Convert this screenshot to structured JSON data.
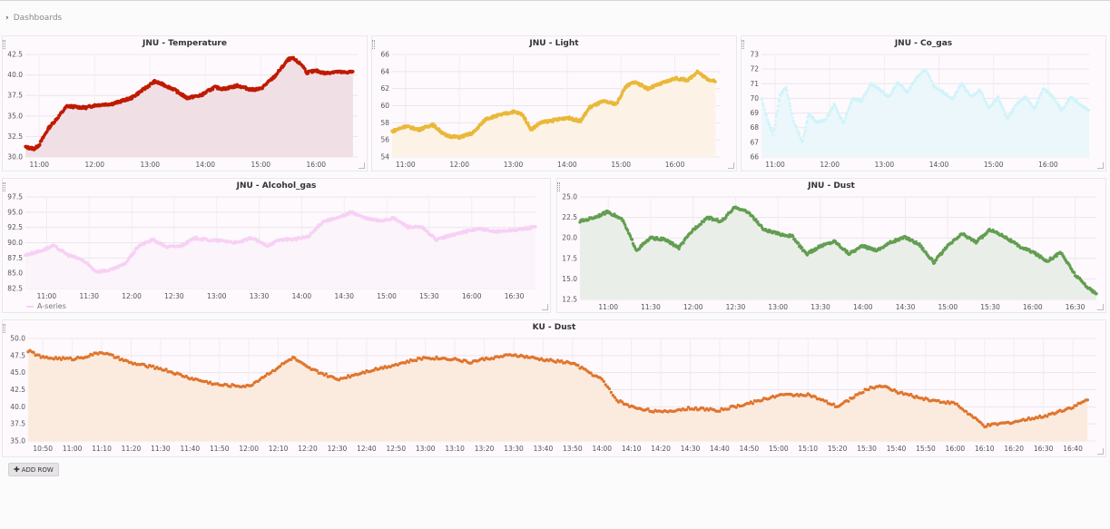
{
  "breadcrumb": {
    "icon": "chevron-right-icon",
    "label": "Dashboards"
  },
  "add_row": {
    "icon": "plus-icon",
    "label": "ADD ROW"
  },
  "chart_data": [
    {
      "id": "jnu-temperature",
      "type": "area",
      "title": "JNU - Temperature",
      "color": "#bf1b00",
      "fill": "#f1dfe6",
      "points": "large",
      "ylim": [
        30.0,
        42.5
      ],
      "yticks": [
        "30.0",
        "32.5",
        "35.0",
        "37.5",
        "40.0",
        "42.5"
      ],
      "xlim": [
        "10:45",
        "16:45"
      ],
      "xticks": [
        "11:00",
        "12:00",
        "13:00",
        "14:00",
        "15:00",
        "16:00"
      ],
      "series": [
        {
          "x": [
            "10:45",
            "10:55",
            "11:00",
            "11:10",
            "11:20",
            "11:30",
            "11:50",
            "12:00",
            "12:20",
            "12:40",
            "12:50",
            "13:05",
            "13:15",
            "13:25",
            "13:40",
            "13:55",
            "14:10",
            "14:20",
            "14:35",
            "14:50",
            "15:00",
            "15:15",
            "15:30",
            "15:35",
            "15:45",
            "15:50",
            "16:00",
            "16:10",
            "16:20",
            "16:30",
            "16:40"
          ],
          "y": [
            31.2,
            31.0,
            31.5,
            33.5,
            34.8,
            36.2,
            36.0,
            36.3,
            36.5,
            37.2,
            38.0,
            39.2,
            38.8,
            38.3,
            37.2,
            37.5,
            38.5,
            38.3,
            38.7,
            38.2,
            38.3,
            39.8,
            41.9,
            42.0,
            41.2,
            40.3,
            40.5,
            40.2,
            40.4,
            40.3,
            40.4
          ]
        }
      ]
    },
    {
      "id": "jnu-light",
      "type": "area",
      "title": "JNU - Light",
      "color": "#eab839",
      "fill": "#fcf3e6",
      "points": "large",
      "ylim": [
        54,
        66
      ],
      "yticks": [
        "54",
        "56",
        "58",
        "60",
        "62",
        "64",
        "66"
      ],
      "xlim": [
        "10:45",
        "16:50"
      ],
      "xticks": [
        "11:00",
        "12:00",
        "13:00",
        "14:00",
        "15:00",
        "16:00"
      ],
      "series": [
        {
          "x": [
            "10:45",
            "11:00",
            "11:15",
            "11:30",
            "11:45",
            "12:00",
            "12:15",
            "12:30",
            "12:45",
            "13:00",
            "13:10",
            "13:20",
            "13:30",
            "13:45",
            "14:00",
            "14:15",
            "14:25",
            "14:40",
            "14:55",
            "15:05",
            "15:15",
            "15:30",
            "15:45",
            "16:00",
            "16:15",
            "16:25",
            "16:35",
            "16:45"
          ],
          "y": [
            57.0,
            57.6,
            57.2,
            57.8,
            56.5,
            56.3,
            56.8,
            58.5,
            58.9,
            59.3,
            59.0,
            57.2,
            58.0,
            58.3,
            58.6,
            58.2,
            59.8,
            60.5,
            60.2,
            62.2,
            62.8,
            62.0,
            62.6,
            63.2,
            63.0,
            64.0,
            63.2,
            62.8
          ]
        }
      ]
    },
    {
      "id": "jnu-co-gas",
      "type": "scatter",
      "title": "JNU - Co_gas",
      "color": "#cff4fa",
      "fill": "#ebf7fb",
      "points": "small",
      "ylim": [
        66,
        73
      ],
      "yticks": [
        "66",
        "67",
        "68",
        "69",
        "70",
        "71",
        "72",
        "73"
      ],
      "xlim": [
        "10:45",
        "16:45"
      ],
      "xticks": [
        "11:00",
        "12:00",
        "13:00",
        "14:00",
        "15:00",
        "16:00"
      ],
      "series": [
        {
          "x": [
            "10:45",
            "10:52",
            "10:58",
            "11:05",
            "11:12",
            "11:20",
            "11:30",
            "11:37",
            "11:45",
            "11:55",
            "12:05",
            "12:15",
            "12:25",
            "12:35",
            "12:45",
            "12:55",
            "13:05",
            "13:15",
            "13:25",
            "13:35",
            "13:45",
            "13:55",
            "14:05",
            "14:15",
            "14:25",
            "14:35",
            "14:45",
            "14:55",
            "15:05",
            "15:15",
            "15:25",
            "15:35",
            "15:45",
            "15:55",
            "16:05",
            "16:15",
            "16:25",
            "16:35",
            "16:45"
          ],
          "y": [
            70.0,
            68.5,
            67.5,
            70.2,
            70.8,
            68.5,
            67.0,
            69.0,
            68.4,
            68.5,
            69.6,
            68.3,
            70.0,
            69.8,
            71.0,
            70.6,
            70.1,
            71.1,
            70.4,
            71.4,
            72.0,
            70.8,
            70.4,
            70.0,
            71.0,
            70.1,
            70.6,
            69.3,
            70.1,
            68.6,
            69.6,
            70.1,
            69.3,
            70.7,
            70.1,
            69.2,
            70.1,
            69.6,
            69.2
          ]
        }
      ]
    },
    {
      "id": "jnu-alcohol-gas",
      "type": "area",
      "title": "JNU - Alcohol_gas",
      "color": "#f7d1f5",
      "fill": "#fbf4fb",
      "points": "large",
      "legend": "A-series",
      "ylim": [
        82.5,
        97.5
      ],
      "yticks": [
        "82.5",
        "85.0",
        "87.5",
        "90.0",
        "92.5",
        "95.0",
        "97.5"
      ],
      "xlim": [
        "10:45",
        "16:45"
      ],
      "xticks": [
        "11:00",
        "11:30",
        "12:00",
        "12:30",
        "13:00",
        "13:30",
        "14:00",
        "14:30",
        "15:00",
        "15:30",
        "16:00",
        "16:30"
      ],
      "series": [
        {
          "x": [
            "10:45",
            "10:55",
            "11:05",
            "11:15",
            "11:25",
            "11:35",
            "11:45",
            "11:55",
            "12:05",
            "12:15",
            "12:25",
            "12:35",
            "12:45",
            "12:55",
            "13:05",
            "13:15",
            "13:25",
            "13:35",
            "13:45",
            "13:55",
            "14:05",
            "14:15",
            "14:25",
            "14:35",
            "14:45",
            "14:55",
            "15:05",
            "15:15",
            "15:25",
            "15:35",
            "15:45",
            "15:55",
            "16:05",
            "16:15",
            "16:25",
            "16:35",
            "16:45"
          ],
          "y": [
            88.0,
            88.6,
            89.5,
            88.0,
            87.2,
            85.3,
            85.5,
            86.5,
            89.5,
            90.5,
            89.3,
            89.5,
            90.8,
            90.4,
            90.3,
            90.0,
            90.8,
            89.5,
            90.5,
            90.6,
            91.0,
            93.5,
            94.0,
            95.0,
            94.0,
            93.6,
            94.0,
            92.6,
            92.5,
            90.5,
            91.2,
            91.8,
            92.3,
            91.8,
            92.0,
            92.2,
            92.6
          ]
        }
      ]
    },
    {
      "id": "jnu-dust",
      "type": "area",
      "title": "JNU - Dust",
      "color": "#629e51",
      "fill": "#eaeee8",
      "points": "large",
      "ylim": [
        12.5,
        25.0
      ],
      "yticks": [
        "12.5",
        "15.0",
        "17.5",
        "20.0",
        "22.5",
        "25.0"
      ],
      "xlim": [
        "10:40",
        "16:45"
      ],
      "xticks": [
        "11:00",
        "11:30",
        "12:00",
        "12:30",
        "13:00",
        "13:30",
        "14:00",
        "14:30",
        "15:00",
        "15:30",
        "16:00",
        "16:30"
      ],
      "series": [
        {
          "x": [
            "10:40",
            "10:50",
            "11:00",
            "11:10",
            "11:20",
            "11:30",
            "11:40",
            "11:50",
            "12:00",
            "12:10",
            "12:20",
            "12:30",
            "12:40",
            "12:50",
            "13:00",
            "13:10",
            "13:20",
            "13:30",
            "13:40",
            "13:50",
            "14:00",
            "14:10",
            "14:20",
            "14:30",
            "14:40",
            "14:50",
            "15:00",
            "15:10",
            "15:20",
            "15:30",
            "15:40",
            "15:50",
            "16:00",
            "16:10",
            "16:20",
            "16:30",
            "16:40",
            "16:45"
          ],
          "y": [
            22.0,
            22.5,
            23.2,
            22.2,
            18.5,
            20.0,
            19.8,
            18.8,
            21.0,
            22.5,
            22.0,
            23.8,
            23.0,
            21.0,
            20.5,
            20.2,
            18.0,
            19.0,
            19.6,
            18.1,
            19.0,
            18.5,
            19.5,
            20.1,
            19.2,
            17.0,
            19.0,
            20.5,
            19.5,
            21.0,
            20.2,
            19.0,
            18.3,
            17.2,
            18.2,
            15.5,
            13.8,
            13.2
          ]
        }
      ]
    },
    {
      "id": "ku-dust",
      "type": "area",
      "title": "KU - Dust",
      "color": "#e0752d",
      "fill": "#fbebdf",
      "points": "large",
      "ylim": [
        35.0,
        50.0
      ],
      "yticks": [
        "35.0",
        "37.5",
        "40.0",
        "42.5",
        "45.0",
        "47.5",
        "50.0"
      ],
      "xlim": [
        "10:45",
        "16:48"
      ],
      "xticks": [
        "10:50",
        "11:00",
        "11:10",
        "11:20",
        "11:30",
        "11:40",
        "11:50",
        "12:00",
        "12:10",
        "12:20",
        "12:30",
        "12:40",
        "12:50",
        "13:00",
        "13:10",
        "13:20",
        "13:30",
        "13:40",
        "13:50",
        "14:00",
        "14:10",
        "14:20",
        "14:30",
        "14:40",
        "14:50",
        "15:00",
        "15:10",
        "15:20",
        "15:30",
        "15:40",
        "15:50",
        "16:00",
        "16:10",
        "16:20",
        "16:30",
        "16:40"
      ],
      "series": [
        {
          "x": [
            "10:45",
            "10:50",
            "11:00",
            "11:05",
            "11:10",
            "11:20",
            "11:30",
            "11:40",
            "11:50",
            "12:00",
            "12:10",
            "12:15",
            "12:20",
            "12:30",
            "12:40",
            "12:50",
            "13:00",
            "13:10",
            "13:15",
            "13:20",
            "13:30",
            "13:40",
            "13:50",
            "14:00",
            "14:05",
            "14:10",
            "14:20",
            "14:30",
            "14:40",
            "14:50",
            "15:00",
            "15:10",
            "15:20",
            "15:30",
            "15:35",
            "15:40",
            "15:50",
            "16:00",
            "16:10",
            "16:20",
            "16:30",
            "16:40",
            "16:45"
          ],
          "y": [
            48.2,
            47.2,
            47.0,
            47.4,
            48.0,
            46.4,
            45.6,
            44.2,
            43.2,
            43.0,
            45.8,
            47.2,
            45.7,
            44.0,
            45.2,
            46.2,
            47.2,
            47.0,
            46.5,
            47.0,
            47.6,
            46.9,
            46.4,
            44.0,
            41.0,
            40.0,
            39.2,
            39.8,
            39.5,
            40.5,
            41.7,
            41.8,
            40.0,
            42.6,
            43.1,
            42.2,
            41.1,
            40.5,
            37.2,
            37.8,
            38.6,
            40.0,
            41.0
          ]
        }
      ]
    }
  ]
}
